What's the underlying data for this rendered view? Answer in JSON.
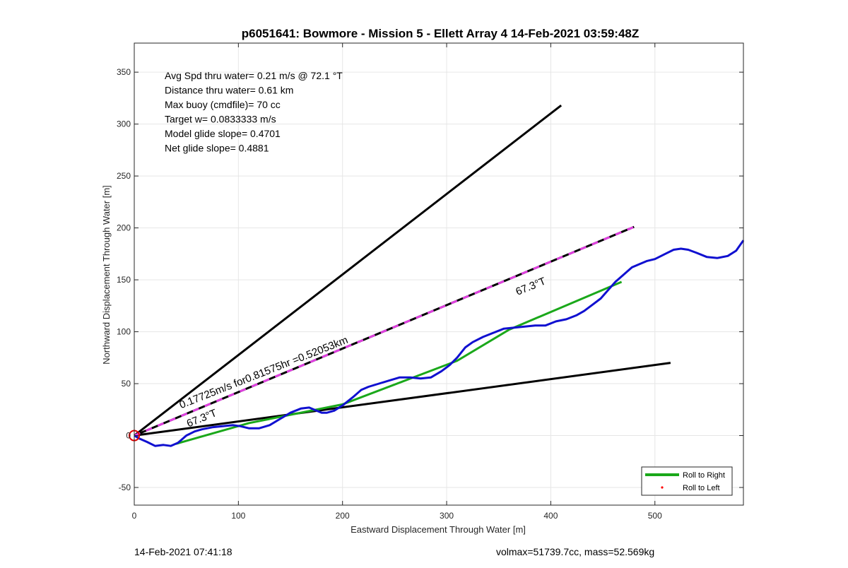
{
  "footer": {
    "left": "14-Feb-2021 07:41:18",
    "right": "volmax=51739.7cc, mass=52.569kg"
  },
  "chart_data": {
    "type": "line",
    "title": "p6051641: Bowmore - Mission 5 - Ellett Array 4 14-Feb-2021 03:59:48Z",
    "xlabel": "Eastward Displacement Through Water [m]",
    "ylabel": "Northward Displacement Through Water [m]",
    "xlim": [
      0,
      585
    ],
    "ylim": [
      -67,
      378
    ],
    "xticks": [
      0,
      100,
      200,
      300,
      400,
      500
    ],
    "yticks": [
      -50,
      0,
      50,
      100,
      150,
      200,
      250,
      300,
      350
    ],
    "grid": true,
    "legend_position": "bottom-right",
    "info_lines": [
      "Avg Spd thru water=  0.21 m/s @  72.1 °T",
      "Distance thru water=  0.61 km",
      "Max buoy (cmdfile)= 70 cc",
      "Target w= 0.0833333 m/s",
      "Model glide slope= 0.4701",
      "Net glide slope= 0.4881"
    ],
    "series": [
      {
        "name": "Roll to Right",
        "color": "#1aa81a",
        "x": [
          40,
          110,
          200,
          310,
          360,
          468
        ],
        "y": [
          -8,
          12,
          30,
          72,
          102,
          148
        ]
      },
      {
        "name": "Roll to Left",
        "color": "#ff0000",
        "marker": "dot",
        "x": [],
        "y": []
      }
    ],
    "track": {
      "color": "#1010d0",
      "x": [
        0,
        5,
        12,
        20,
        28,
        35,
        42,
        50,
        58,
        65,
        75,
        85,
        95,
        102,
        110,
        120,
        130,
        140,
        150,
        160,
        168,
        175,
        180,
        185,
        192,
        200,
        210,
        218,
        225,
        235,
        245,
        255,
        265,
        275,
        285,
        295,
        303,
        310,
        318,
        325,
        335,
        345,
        355,
        365,
        375,
        385,
        395,
        405,
        415,
        425,
        432,
        440,
        448,
        455,
        462,
        470,
        478,
        485,
        492,
        500,
        510,
        518,
        525,
        532,
        540,
        550,
        560,
        570,
        578,
        585
      ],
      "y": [
        0,
        -3,
        -6,
        -10,
        -9,
        -10,
        -7,
        0,
        4,
        6,
        8,
        9,
        10,
        9,
        7,
        7,
        10,
        16,
        22,
        26,
        27,
        24,
        22,
        22,
        24,
        29,
        37,
        44,
        47,
        50,
        53,
        56,
        56,
        55,
        56,
        62,
        68,
        75,
        85,
        90,
        95,
        99,
        103,
        104,
        105,
        106,
        106,
        110,
        112,
        116,
        120,
        126,
        132,
        140,
        148,
        155,
        162,
        165,
        168,
        170,
        175,
        179,
        180,
        179,
        176,
        172,
        171,
        173,
        178,
        188
      ]
    },
    "reference_lines": [
      {
        "color": "#000000",
        "style": "solid",
        "x": [
          0,
          410
        ],
        "y": [
          0,
          318
        ]
      },
      {
        "color": "#000000",
        "style": "solid",
        "x": [
          0,
          515
        ],
        "y": [
          0,
          70
        ]
      },
      {
        "color": "#000000",
        "dash_color": "#e040e0",
        "style": "dashed",
        "x": [
          0,
          480
        ],
        "y": [
          0,
          201
        ]
      }
    ],
    "origin_marker": {
      "x": 0,
      "y": 0,
      "color": "#e00000"
    },
    "annotations": [
      {
        "text": "0.17725m/s for0.81575hr =0.52053km",
        "x": 45,
        "y": 26,
        "angle_deg": -21.5
      },
      {
        "text": "67.3°T",
        "x": 52,
        "y": 8,
        "angle_deg": -22
      },
      {
        "text": "67.3°T",
        "x": 368,
        "y": 135,
        "angle_deg": -22
      }
    ]
  }
}
